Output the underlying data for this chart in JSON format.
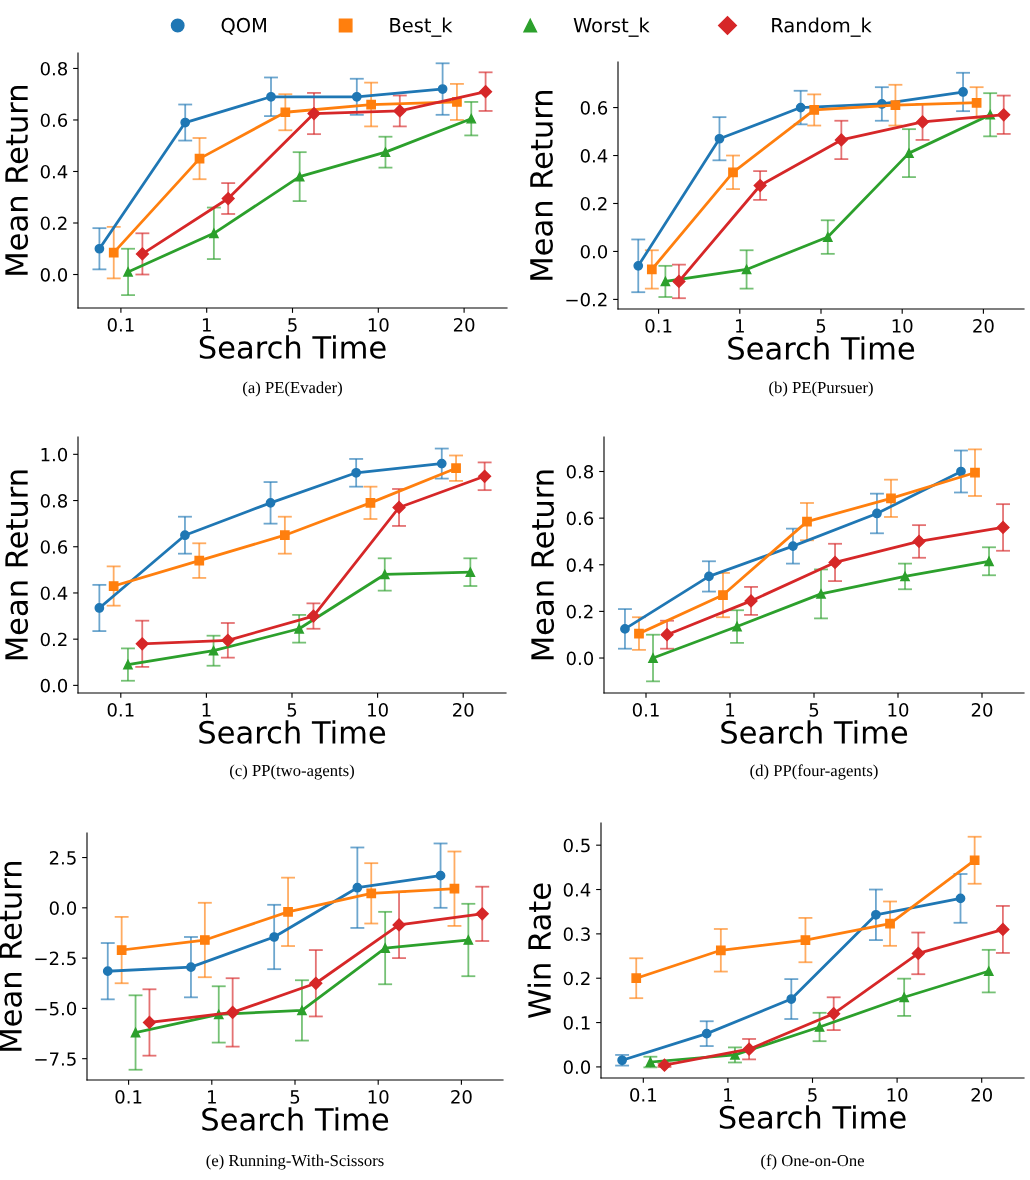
{
  "chart_data": [
    {
      "type": "line",
      "title": "(a) PE(Evader)",
      "xlabel": "Search Time",
      "ylabel": "Mean Return",
      "categories": [
        "0.1",
        "1",
        "5",
        "10",
        "20"
      ],
      "ylim": [
        -0.13,
        0.86
      ],
      "yticks": [
        {
          "value": 0,
          "label": "0.0"
        },
        0.2,
        0.4,
        0.6,
        0.8
      ],
      "legend": "top",
      "grid": false,
      "line_style": "solid",
      "series": [
        {
          "name": "QOM",
          "color": "#1f77b4",
          "marker": "circle",
          "values": [
            0.1,
            0.59,
            0.69,
            0.69,
            0.72
          ],
          "errors": [
            0.08,
            0.07,
            0.075,
            0.07,
            0.1
          ]
        },
        {
          "name": "Best_k",
          "color": "#ff7f0e",
          "marker": "square",
          "values": [
            0.085,
            0.45,
            0.63,
            0.66,
            0.67
          ],
          "errors": [
            0.1,
            0.08,
            0.07,
            0.085,
            0.07
          ]
        },
        {
          "name": "Worst_k",
          "color": "#2ca02c",
          "marker": "triangle",
          "values": [
            0.01,
            0.16,
            0.38,
            0.475,
            0.605
          ],
          "errors": [
            0.09,
            0.1,
            0.095,
            0.06,
            0.065
          ]
        },
        {
          "name": "Random_k",
          "color": "#d62728",
          "marker": "diamond",
          "values": [
            0.08,
            0.295,
            0.625,
            0.635,
            0.71
          ],
          "errors": [
            0.08,
            0.06,
            0.08,
            0.06,
            0.075
          ]
        }
      ]
    },
    {
      "type": "line",
      "title": "(b) PE(Pursuer)",
      "xlabel": "Search Time",
      "ylabel": "Mean Return",
      "categories": [
        "0.1",
        "1",
        "5",
        "10",
        "20"
      ],
      "ylim": [
        -0.24,
        0.79
      ],
      "yticks": [
        {
          "value": -0.2,
          "label": "−0.2"
        },
        {
          "value": 0,
          "label": "0.0"
        },
        0.2,
        0.4,
        0.6
      ],
      "grid": false,
      "line_style": "solid",
      "series": [
        {
          "color": "#1f77b4",
          "marker": "circle",
          "values": [
            -0.06,
            0.47,
            0.6,
            0.615,
            0.665
          ],
          "errors": [
            0.11,
            0.09,
            0.07,
            0.07,
            0.08
          ]
        },
        {
          "color": "#ff7f0e",
          "marker": "square",
          "values": [
            -0.075,
            0.33,
            0.59,
            0.61,
            0.62
          ],
          "errors": [
            0.08,
            0.07,
            0.065,
            0.085,
            0.065
          ]
        },
        {
          "color": "#2ca02c",
          "marker": "triangle",
          "values": [
            -0.125,
            -0.075,
            0.06,
            0.41,
            0.57
          ],
          "errors": [
            0.065,
            0.08,
            0.07,
            0.1,
            0.09
          ]
        },
        {
          "color": "#d62728",
          "marker": "diamond",
          "values": [
            -0.125,
            0.275,
            0.465,
            0.54,
            0.57
          ],
          "errors": [
            0.07,
            0.06,
            0.08,
            0.075,
            0.08
          ]
        }
      ]
    },
    {
      "type": "line",
      "title": "(c) PP(two-agents)",
      "xlabel": "Search Time",
      "ylabel": "Mean Return",
      "categories": [
        "0.1",
        "1",
        "5",
        "10",
        "20"
      ],
      "ylim": [
        -0.033,
        1.075
      ],
      "yticks": [
        {
          "value": 0,
          "label": "0.0"
        },
        0.2,
        0.4,
        0.6,
        0.8,
        {
          "value": 1,
          "label": "1.0"
        }
      ],
      "grid": false,
      "line_style": "solid",
      "series": [
        {
          "color": "#1f77b4",
          "marker": "circle",
          "values": [
            0.335,
            0.65,
            0.79,
            0.92,
            0.96
          ],
          "errors": [
            0.1,
            0.08,
            0.09,
            0.06,
            0.065
          ]
        },
        {
          "color": "#ff7f0e",
          "marker": "square",
          "values": [
            0.43,
            0.54,
            0.65,
            0.79,
            0.94
          ],
          "errors": [
            0.085,
            0.075,
            0.08,
            0.07,
            0.055
          ]
        },
        {
          "color": "#2ca02c",
          "marker": "triangle",
          "values": [
            0.09,
            0.15,
            0.245,
            0.48,
            0.49
          ],
          "errors": [
            0.07,
            0.065,
            0.06,
            0.07,
            0.06
          ]
        },
        {
          "color": "#d62728",
          "marker": "diamond",
          "values": [
            0.18,
            0.195,
            0.3,
            0.77,
            0.905
          ],
          "errors": [
            0.1,
            0.075,
            0.055,
            0.08,
            0.06
          ]
        }
      ]
    },
    {
      "type": "line",
      "title": "(d) PP(four-agents)",
      "xlabel": "Search Time",
      "ylabel": "Mean Return",
      "categories": [
        "0.1",
        "1",
        "5",
        "10",
        "20"
      ],
      "ylim": [
        -0.15,
        0.948
      ],
      "yticks": [
        {
          "value": 0,
          "label": "0.0"
        },
        0.2,
        0.4,
        0.6,
        0.8
      ],
      "grid": false,
      "line_style": "solid",
      "series": [
        {
          "color": "#1f77b4",
          "marker": "circle",
          "values": [
            0.125,
            0.35,
            0.48,
            0.62,
            0.8
          ],
          "errors": [
            0.085,
            0.065,
            0.075,
            0.085,
            0.09
          ]
        },
        {
          "color": "#ff7f0e",
          "marker": "square",
          "values": [
            0.105,
            0.27,
            0.585,
            0.685,
            0.795
          ],
          "errors": [
            0.07,
            0.095,
            0.08,
            0.08,
            0.1
          ]
        },
        {
          "color": "#2ca02c",
          "marker": "triangle",
          "values": [
            0.0,
            0.135,
            0.275,
            0.35,
            0.415
          ],
          "errors": [
            0.1,
            0.07,
            0.105,
            0.055,
            0.06
          ]
        },
        {
          "color": "#d62728",
          "marker": "diamond",
          "values": [
            0.1,
            0.245,
            0.41,
            0.5,
            0.56
          ],
          "errors": [
            0.06,
            0.06,
            0.08,
            0.07,
            0.1
          ]
        }
      ]
    },
    {
      "type": "line",
      "title": "(e) Running-With-Scissors",
      "xlabel": "Search Time",
      "ylabel": "Mean Return",
      "categories": [
        "0.1",
        "1",
        "5",
        "10",
        "20"
      ],
      "ylim": [
        -8.56,
        3.72
      ],
      "yticks": [
        {
          "value": -7.5,
          "label": "−7.5"
        },
        {
          "value": -5,
          "label": "−5.0"
        },
        {
          "value": -2.5,
          "label": "−2.5"
        },
        {
          "value": 0,
          "label": "0.0"
        },
        2.5
      ],
      "grid": false,
      "line_style": "solid",
      "series": [
        {
          "color": "#1f77b4",
          "marker": "circle",
          "values": [
            -3.15,
            -2.95,
            -1.45,
            1.0,
            1.6
          ],
          "errors": [
            1.4,
            1.5,
            1.6,
            2.0,
            1.6
          ]
        },
        {
          "color": "#ff7f0e",
          "marker": "square",
          "values": [
            -2.1,
            -1.6,
            -0.2,
            0.72,
            0.95
          ],
          "errors": [
            1.65,
            1.85,
            1.7,
            1.5,
            1.85
          ]
        },
        {
          "color": "#2ca02c",
          "marker": "triangle",
          "values": [
            -6.2,
            -5.3,
            -5.1,
            -2.0,
            -1.6
          ],
          "errors": [
            1.85,
            1.4,
            1.5,
            1.8,
            1.8
          ]
        },
        {
          "color": "#d62728",
          "marker": "diamond",
          "values": [
            -5.7,
            -5.2,
            -3.75,
            -0.85,
            -0.3
          ],
          "errors": [
            1.65,
            1.7,
            1.65,
            1.65,
            1.35
          ]
        }
      ]
    },
    {
      "type": "line",
      "title": "(f) One-on-One",
      "xlabel": "Search Time",
      "ylabel": "Win Rate",
      "categories": [
        "0.1",
        "1",
        "5",
        "10",
        "20"
      ],
      "ylim": [
        -0.025,
        0.55
      ],
      "yticks": [
        {
          "value": 0,
          "label": "0.0"
        },
        0.1,
        0.2,
        0.3,
        0.4,
        0.5
      ],
      "grid": false,
      "line_style": "solid",
      "series": [
        {
          "color": "#1f77b4",
          "marker": "circle",
          "values": [
            0.015,
            0.075,
            0.153,
            0.343,
            0.38
          ],
          "errors": [
            0.012,
            0.028,
            0.045,
            0.057,
            0.055
          ]
        },
        {
          "color": "#ff7f0e",
          "marker": "square",
          "values": [
            0.2,
            0.263,
            0.286,
            0.323,
            0.466
          ],
          "errors": [
            0.045,
            0.048,
            0.05,
            0.05,
            0.053
          ]
        },
        {
          "color": "#2ca02c",
          "marker": "triangle",
          "values": [
            0.011,
            0.027,
            0.09,
            0.157,
            0.216
          ],
          "errors": [
            0.012,
            0.017,
            0.032,
            0.042,
            0.048
          ]
        },
        {
          "color": "#d62728",
          "marker": "diamond",
          "values": [
            0.004,
            0.04,
            0.12,
            0.256,
            0.31
          ],
          "errors": [
            0.004,
            0.023,
            0.037,
            0.047,
            0.053
          ]
        }
      ]
    }
  ]
}
